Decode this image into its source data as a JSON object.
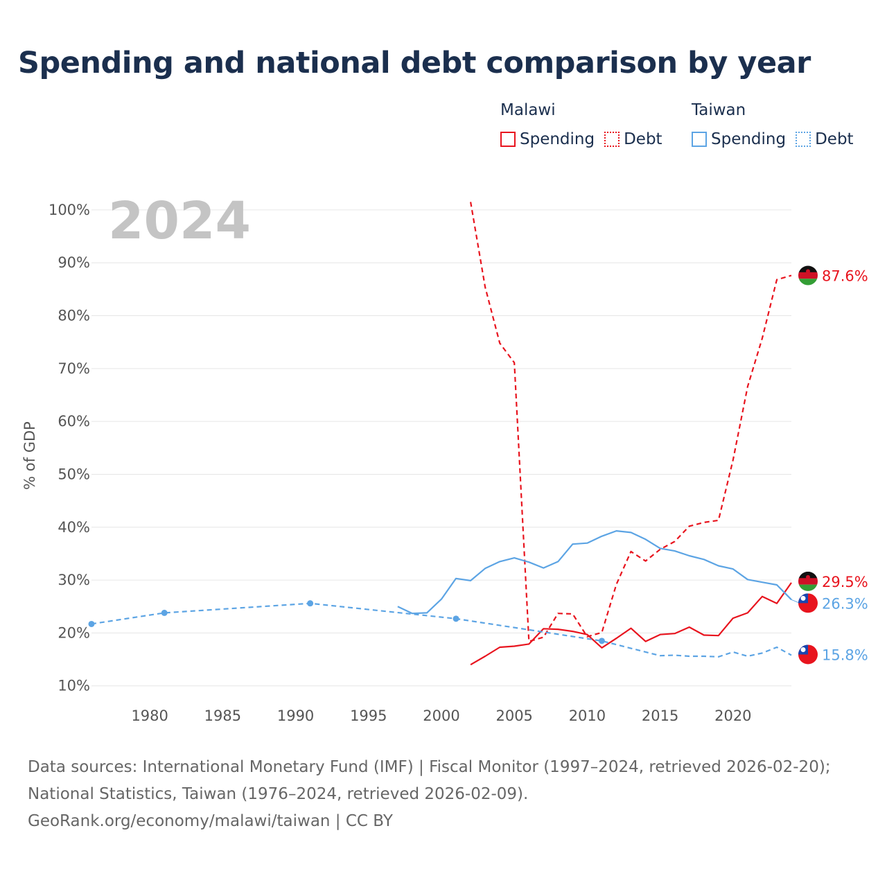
{
  "chart_data": {
    "type": "line",
    "title": "Spending and national debt comparison by year",
    "year_label": "2024",
    "ylabel": "% of GDP",
    "ylim": [
      8,
      103
    ],
    "xlim": [
      1976,
      2024
    ],
    "y_ticks": [
      10,
      20,
      30,
      40,
      50,
      60,
      70,
      80,
      90,
      100
    ],
    "y_tick_labels": [
      "10%",
      "20%",
      "30%",
      "40%",
      "50%",
      "60%",
      "70%",
      "80%",
      "90%",
      "100%"
    ],
    "x_ticks": [
      1980,
      1985,
      1990,
      1995,
      2000,
      2005,
      2010,
      2015,
      2020
    ],
    "x_tick_labels": [
      "1980",
      "1985",
      "1990",
      "1995",
      "2000",
      "2005",
      "2010",
      "2015",
      "2020"
    ],
    "legend": {
      "groups": [
        {
          "name": "Malawi",
          "spending_label": "Spending",
          "debt_label": "Debt",
          "color": "#e8141e"
        },
        {
          "name": "Taiwan",
          "spending_label": "Spending",
          "debt_label": "Debt",
          "color": "#5ca4e4"
        }
      ]
    },
    "series": [
      {
        "name": "Malawi Spending",
        "country": "Malawi",
        "style": "solid",
        "color": "#e8141e",
        "x": [
          2002,
          2003,
          2004,
          2005,
          2006,
          2007,
          2008,
          2009,
          2010,
          2011,
          2012,
          2013,
          2014,
          2015,
          2016,
          2017,
          2018,
          2019,
          2020,
          2021,
          2022,
          2023,
          2024
        ],
        "y": [
          14.0,
          15.6,
          17.3,
          17.5,
          17.9,
          20.8,
          20.7,
          20.3,
          19.7,
          17.2,
          19.0,
          20.9,
          18.4,
          19.7,
          19.9,
          21.1,
          19.6,
          19.5,
          22.8,
          23.8,
          26.9,
          25.6,
          29.5
        ],
        "end_label": "29.5%"
      },
      {
        "name": "Malawi Debt",
        "country": "Malawi",
        "style": "dashed",
        "color": "#e8141e",
        "x": [
          2002,
          2003,
          2004,
          2005,
          2006,
          2007,
          2008,
          2009,
          2010,
          2011,
          2012,
          2013,
          2014,
          2015,
          2016,
          2017,
          2018,
          2019,
          2020,
          2021,
          2022,
          2023,
          2024
        ],
        "y": [
          101.5,
          85.4,
          74.8,
          71.1,
          18.4,
          19.2,
          23.7,
          23.6,
          19.3,
          20.1,
          29.2,
          35.4,
          33.6,
          35.8,
          37.3,
          40.2,
          40.9,
          41.3,
          52.7,
          66.6,
          75.7,
          86.8,
          87.6
        ],
        "end_label": "87.6%"
      },
      {
        "name": "Taiwan Spending",
        "country": "Taiwan",
        "style": "solid",
        "color": "#5ca4e4",
        "x": [
          1997,
          1998,
          1999,
          2000,
          2001,
          2002,
          2003,
          2004,
          2005,
          2006,
          2007,
          2008,
          2009,
          2010,
          2011,
          2012,
          2013,
          2014,
          2015,
          2016,
          2017,
          2018,
          2019,
          2020,
          2021,
          2022,
          2023,
          2024
        ],
        "y": [
          25.0,
          23.7,
          23.8,
          26.4,
          30.3,
          29.9,
          32.2,
          33.5,
          34.2,
          33.4,
          32.3,
          33.5,
          36.8,
          37.0,
          38.3,
          39.3,
          39.0,
          37.7,
          36.0,
          35.5,
          34.6,
          33.9,
          32.7,
          32.1,
          30.1,
          29.6,
          29.1,
          26.3
        ],
        "end_label": "26.3%"
      },
      {
        "name": "Taiwan Debt",
        "country": "Taiwan",
        "style": "dashed",
        "color": "#5ca4e4",
        "x": [
          1976,
          1981,
          1991,
          2001,
          2011,
          2015,
          2016,
          2017,
          2018,
          2019,
          2020,
          2021,
          2022,
          2023,
          2024
        ],
        "y": [
          21.7,
          23.8,
          25.6,
          22.7,
          18.5,
          15.7,
          15.8,
          15.6,
          15.6,
          15.5,
          16.4,
          15.6,
          16.2,
          17.3,
          15.8
        ],
        "marker_x": [
          1976,
          1981,
          1991,
          2001,
          2011
        ],
        "end_label": "15.8%"
      }
    ]
  },
  "sources": {
    "line1": "Data sources: International Monetary Fund (IMF) | Fiscal Monitor (1997–2024, retrieved 2026-02-20);",
    "line2": "National Statistics, Taiwan (1976–2024, retrieved 2026-02-09).",
    "line3": "GeoRank.org/economy/malawi/taiwan | CC BY"
  },
  "flags": {
    "malawi": "malawi-flag-icon",
    "taiwan": "taiwan-flag-icon"
  }
}
